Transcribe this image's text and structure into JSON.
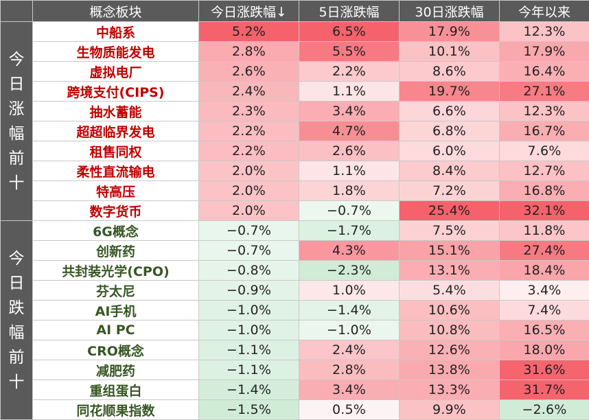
{
  "headers": [
    "概念板块",
    "今日涨跌幅↓",
    "5日涨跌幅",
    "30日涨跌幅",
    "今年以来"
  ],
  "groups": [
    {
      "label": "今日涨幅前十",
      "label_chars": [
        "今",
        "日",
        "涨",
        "幅",
        "前",
        "十"
      ],
      "name_color": "#c00000",
      "rows": [
        {
          "name": "中船系",
          "d1": "5.2%",
          "d5": "6.5%",
          "d30": "17.9%",
          "ytd": "12.3%"
        },
        {
          "name": "生物质能发电",
          "d1": "2.8%",
          "d5": "5.5%",
          "d30": "10.1%",
          "ytd": "17.9%"
        },
        {
          "name": "虚拟电厂",
          "d1": "2.6%",
          "d5": "2.2%",
          "d30": "8.6%",
          "ytd": "16.4%"
        },
        {
          "name": "跨境支付(CIPS)",
          "d1": "2.4%",
          "d5": "1.1%",
          "d30": "19.7%",
          "ytd": "27.1%"
        },
        {
          "name": "抽水蓄能",
          "d1": "2.3%",
          "d5": "3.4%",
          "d30": "6.6%",
          "ytd": "12.3%"
        },
        {
          "name": "超超临界发电",
          "d1": "2.2%",
          "d5": "4.7%",
          "d30": "6.8%",
          "ytd": "16.7%"
        },
        {
          "name": "租售同权",
          "d1": "2.2%",
          "d5": "2.6%",
          "d30": "6.0%",
          "ytd": "7.6%"
        },
        {
          "name": "柔性直流输电",
          "d1": "2.0%",
          "d5": "1.1%",
          "d30": "8.4%",
          "ytd": "12.7%"
        },
        {
          "name": "特高压",
          "d1": "2.0%",
          "d5": "1.8%",
          "d30": "7.2%",
          "ytd": "16.8%"
        },
        {
          "name": "数字货币",
          "d1": "2.0%",
          "d5": "−0.7%",
          "d30": "25.4%",
          "ytd": "32.1%"
        }
      ]
    },
    {
      "label": "今日跌幅前十",
      "label_chars": [
        "今",
        "日",
        "跌",
        "幅",
        "前",
        "十"
      ],
      "name_color": "#375623",
      "rows": [
        {
          "name": "6G概念",
          "d1": "−0.7%",
          "d5": "−1.7%",
          "d30": "7.5%",
          "ytd": "11.8%"
        },
        {
          "name": "创新药",
          "d1": "−0.7%",
          "d5": "4.3%",
          "d30": "15.1%",
          "ytd": "27.4%"
        },
        {
          "name": "共封装光学(CPO)",
          "d1": "−0.8%",
          "d5": "−2.3%",
          "d30": "13.1%",
          "ytd": "18.4%"
        },
        {
          "name": "芬太尼",
          "d1": "−0.9%",
          "d5": "1.0%",
          "d30": "5.4%",
          "ytd": "3.4%"
        },
        {
          "name": "AI手机",
          "d1": "−1.0%",
          "d5": "−1.4%",
          "d30": "10.6%",
          "ytd": "7.4%"
        },
        {
          "name": "AI PC",
          "d1": "−1.0%",
          "d5": "−1.0%",
          "d30": "10.8%",
          "ytd": "16.5%"
        },
        {
          "name": "CRO概念",
          "d1": "−1.1%",
          "d5": "2.4%",
          "d30": "12.6%",
          "ytd": "18.0%"
        },
        {
          "name": "减肥药",
          "d1": "−1.1%",
          "d5": "2.8%",
          "d30": "13.8%",
          "ytd": "31.6%"
        },
        {
          "name": "重组蛋白",
          "d1": "−1.4%",
          "d5": "3.4%",
          "d30": "13.3%",
          "ytd": "31.7%"
        },
        {
          "name": "同花顺果指数",
          "d1": "−1.5%",
          "d5": "0.5%",
          "d30": "9.9%",
          "ytd": "−2.6%"
        }
      ]
    }
  ],
  "colors": {
    "header_bg": "#5a5a5a",
    "positive": "#f4515b",
    "negative": "#63be7b",
    "neutral": "#ffffff"
  }
}
